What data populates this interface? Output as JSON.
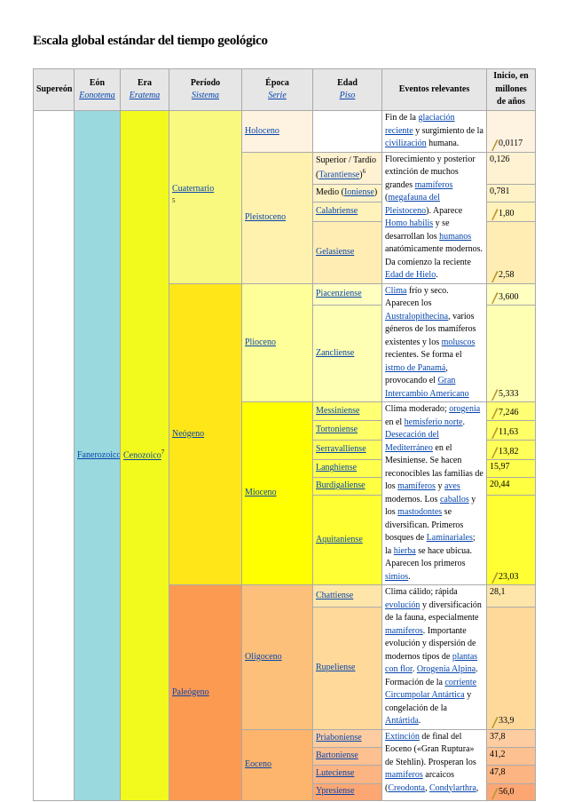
{
  "title": "Escala global estándar del tiempo geológico",
  "header": [
    {
      "name": "Supereón"
    },
    {
      "name": "Eón",
      "sub": "Eonotema"
    },
    {
      "name": "Era",
      "sub": "Eratema"
    },
    {
      "name": "Período",
      "sub": "Sistema"
    },
    {
      "name": "Época",
      "sub": "Serie"
    },
    {
      "name": "Edad",
      "sub": "Piso"
    },
    {
      "name": "Eventos relevantes"
    },
    {
      "name": "Inicio, en millones de años"
    }
  ],
  "eon": {
    "name": "Fanerozoico",
    "color": "#9ad9dd"
  },
  "era": {
    "name": "Cenozoico",
    "note": "7",
    "color": "#f2f91d"
  },
  "periods": [
    {
      "name": "Cuaternario",
      "note": "5",
      "color": "#f9f97f",
      "epochs": [
        {
          "name": "Holoceno",
          "color": "#fef2e0",
          "event": [
            "Fin de la ",
            {
              "link": "glaciación reciente"
            },
            " y surgimiento de la ",
            {
              "link": "civilización"
            },
            " humana."
          ],
          "ages": [
            {
              "start": "0,0117",
              "gssp": true
            }
          ]
        },
        {
          "name": "Pleistoceno",
          "color": "#fff2ae",
          "event": [
            "Florecimiento y posterior extinción de muchos grandes ",
            {
              "link": "mamíferos"
            },
            " (",
            {
              "link": "megafauna del Pleistoceno"
            },
            "). Aparece ",
            {
              "link": "Homo habilis"
            },
            " y se desarrollan los ",
            {
              "link": "humanos"
            },
            " anatómicamente modernos. Da comienzo la reciente ",
            {
              "link": "Edad de Hielo"
            },
            "."
          ],
          "ages": [
            {
              "name": [
                "Superior / Tardío (",
                {
                  "link": "Tarantiense"
                },
                ")"
              ],
              "note": "6",
              "start": "0,126",
              "color": "#fff2d3"
            },
            {
              "name": [
                "Medio (",
                {
                  "link": "Ioniense"
                },
                ")"
              ],
              "start": "0,781",
              "color": "#fff2c7"
            },
            {
              "name": [
                {
                  "link": "Calabriense"
                }
              ],
              "start": "1,80",
              "gssp": true,
              "color": "#fff2ba"
            },
            {
              "name": [
                {
                  "link": "Gelasiense"
                }
              ],
              "start": "2,58",
              "gssp": true,
              "color": "#ffedb3"
            }
          ]
        }
      ]
    },
    {
      "name": "Neógeno",
      "color": "#ffe619",
      "epochs": [
        {
          "name": "Plioceno",
          "color": "#ffff99",
          "event": [
            {
              "link": "Clima"
            },
            " frío y seco. Aparecen los ",
            {
              "link": "Australopithecina"
            },
            ", varios géneros de los mamíferos existentes y los ",
            {
              "link": "moluscos"
            },
            " recientes. Se forma el ",
            {
              "link": "istmo de Panamá"
            },
            ", provocando el ",
            {
              "link": "Gran Intercambio Americano"
            }
          ],
          "ages": [
            {
              "name": [
                {
                  "link": "Piacenziense"
                }
              ],
              "start": "3,600",
              "gssp": true,
              "color": "#ffffbf"
            },
            {
              "name": [
                {
                  "link": "Zancliense"
                }
              ],
              "start": "5,333",
              "gssp": true,
              "color": "#ffffb3"
            }
          ]
        },
        {
          "name": "Mioceno",
          "color": "#ffff00",
          "event": [
            "Clima moderado; ",
            {
              "link": "orogenia"
            },
            " en el ",
            {
              "link": "hemisferio norte"
            },
            ". ",
            {
              "link": "Desecación del Mediterráneo"
            },
            " en el Mesiniense. Se hacen reconocibles las familias de los ",
            {
              "link": "mamíferos"
            },
            " y ",
            {
              "link": "aves"
            },
            " modernos. Los ",
            {
              "link": "caballos"
            },
            " y los ",
            {
              "link": "mastodontes"
            },
            " se diversifican. Primeros bosques de ",
            {
              "link": "Laminariales"
            },
            "; la ",
            {
              "link": "hierba"
            },
            " se hace ubicua. Aparecen los primeros ",
            {
              "link": "simios"
            },
            "."
          ],
          "ages": [
            {
              "name": [
                {
                  "link": "Messiniense"
                }
              ],
              "start": "7,246",
              "gssp": true,
              "color": "#ffff73"
            },
            {
              "name": [
                {
                  "link": "Tortoniense"
                }
              ],
              "start": "11,63",
              "gssp": true,
              "color": "#ffff66"
            },
            {
              "name": [
                {
                  "link": "Serravalliense"
                }
              ],
              "start": "13,82",
              "gssp": true,
              "color": "#ffff59"
            },
            {
              "name": [
                {
                  "link": "Langhiense"
                }
              ],
              "start": "15,97",
              "color": "#ffff4d"
            },
            {
              "name": [
                {
                  "link": "Burdigaliense"
                }
              ],
              "start": "20,44",
              "color": "#ffff41"
            },
            {
              "name": [
                {
                  "link": "Aquitaniense"
                }
              ],
              "start": "23,03",
              "gssp": true,
              "color": "#ffff33"
            }
          ]
        }
      ]
    },
    {
      "name": "Paleógeno",
      "color": "#fd9a52",
      "epochs": [
        {
          "name": "Oligoceno",
          "color": "#fdc07a",
          "event": [
            "Clima cálido; rápida ",
            {
              "link": "evolución"
            },
            " y diversificación de la fauna, especialmente ",
            {
              "link": "mamíferos"
            },
            ". Importante evolución y dispersión de modernos tipos de ",
            {
              "link": "plantas con flor"
            },
            ". ",
            {
              "link": "Orogenia Alpina"
            },
            ". Formación de la ",
            {
              "link": "corriente Circumpolar Antártica"
            },
            " y congelación de la ",
            {
              "link": "Antártida"
            },
            "."
          ],
          "ages": [
            {
              "name": [
                {
                  "link": "Chattiense"
                }
              ],
              "start": "28,1",
              "color": "#fee6aa"
            },
            {
              "name": [
                {
                  "link": "Rupeliense"
                }
              ],
              "start": "33,9",
              "gssp": true,
              "color": "#fed99a"
            }
          ]
        },
        {
          "name": "Eoceno",
          "color": "#fdb46c",
          "event": [
            {
              "link": "Extinción"
            },
            " de final del Eoceno («Gran Ruptura» de Stehlin). Prosperan los ",
            {
              "link": "mamíferos"
            },
            " arcaicos (",
            {
              "link": "Creodonta"
            },
            ", ",
            {
              "link": "Condylarthra"
            },
            ","
          ],
          "ages": [
            {
              "name": [
                {
                  "link": "Priaboniense"
                }
              ],
              "start": "37,8",
              "color": "#fdcda1"
            },
            {
              "name": [
                {
                  "link": "Bartoniense"
                }
              ],
              "start": "41,2",
              "color": "#fdc091"
            },
            {
              "name": [
                {
                  "link": "Luteciense"
                }
              ],
              "start": "47,8",
              "color": "#fcb482"
            },
            {
              "name": [
                {
                  "link": "Ypresiense"
                }
              ],
              "start": "56,0",
              "gssp": true,
              "color": "#fca773"
            }
          ]
        }
      ]
    }
  ]
}
